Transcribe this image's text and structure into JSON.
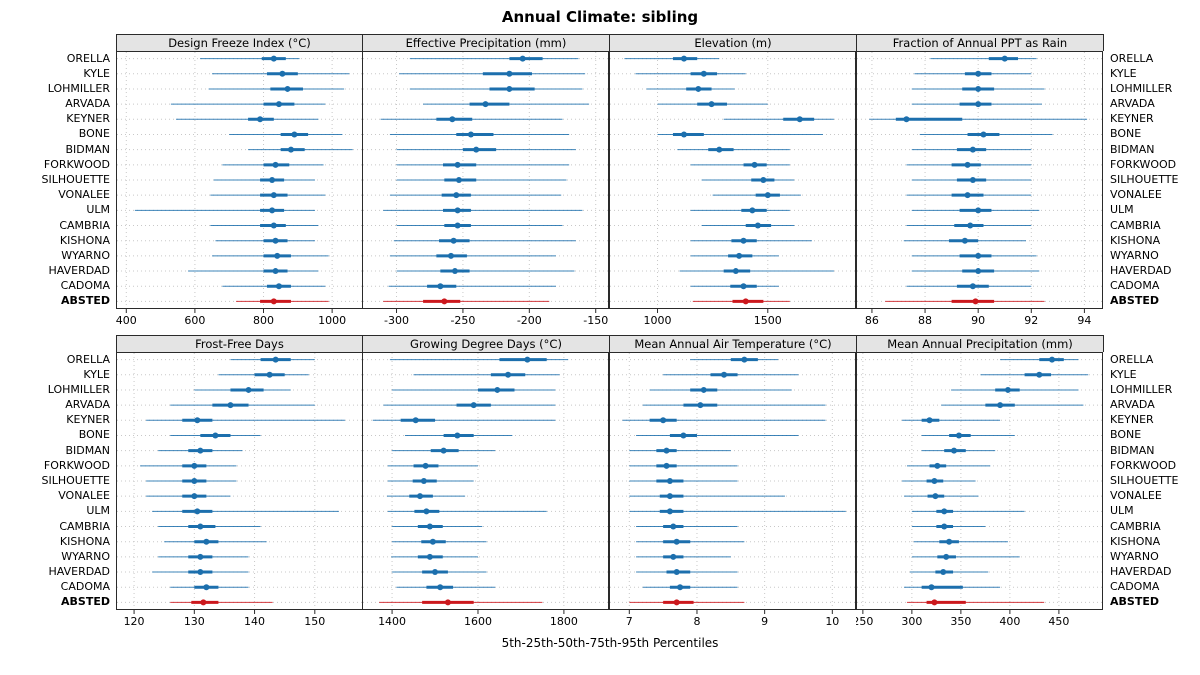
{
  "chart_data": {
    "type": "scatter",
    "subtype": "percentile-dotplot-trellis",
    "title": "Annual Climate: sibling",
    "caption": "5th-25th-50th-75th-95th Percentiles",
    "legend_position": "none",
    "grid": "dotted",
    "percentiles": [
      5,
      25,
      50,
      75,
      95
    ],
    "sites": [
      "ORELLA",
      "KYLE",
      "LOHMILLER",
      "ARVADA",
      "KEYNER",
      "BONE",
      "BIDMAN",
      "FORKWOOD",
      "SILHOUETTE",
      "VONALEE",
      "ULM",
      "CAMBRIA",
      "KISHONA",
      "WYARNO",
      "HAVERDAD",
      "CADOMA",
      "ABSTED"
    ],
    "highlight_site": "ABSTED",
    "colors": {
      "normal": "#1c6fad",
      "highlight": "#cb181d",
      "strip_bg": "#e4e4e4",
      "border": "#2a2a2a",
      "gridline": "#c8c8c8"
    },
    "panels": [
      {
        "title": "Design Freeze Index (°C)",
        "xlim": [
          370,
          1090
        ],
        "ticks": [
          400,
          600,
          800,
          1000
        ],
        "values": [
          [
            615,
            795,
            830,
            865,
            905
          ],
          [
            650,
            810,
            855,
            900,
            1050
          ],
          [
            640,
            820,
            870,
            915,
            1035
          ],
          [
            530,
            800,
            845,
            890,
            980
          ],
          [
            545,
            755,
            790,
            830,
            960
          ],
          [
            700,
            850,
            890,
            930,
            1030
          ],
          [
            755,
            850,
            880,
            920,
            1060
          ],
          [
            680,
            800,
            835,
            875,
            975
          ],
          [
            655,
            790,
            825,
            860,
            950
          ],
          [
            645,
            790,
            830,
            870,
            980
          ],
          [
            425,
            790,
            825,
            860,
            950
          ],
          [
            645,
            790,
            830,
            865,
            960
          ],
          [
            660,
            800,
            835,
            870,
            950
          ],
          [
            650,
            800,
            840,
            880,
            990
          ],
          [
            580,
            800,
            835,
            870,
            960
          ],
          [
            680,
            810,
            845,
            880,
            980
          ],
          [
            720,
            790,
            830,
            880,
            990
          ]
        ]
      },
      {
        "title": "Effective Precipitation (mm)",
        "xlim": [
          -326,
          -140
        ],
        "ticks": [
          -300,
          -250,
          -200,
          -150
        ],
        "values": [
          [
            -290,
            -215,
            -205,
            -190,
            -163
          ],
          [
            -298,
            -235,
            -215,
            -198,
            -158
          ],
          [
            -290,
            -230,
            -215,
            -196,
            -160
          ],
          [
            -280,
            -245,
            -233,
            -215,
            -155
          ],
          [
            -312,
            -270,
            -258,
            -243,
            -175
          ],
          [
            -305,
            -255,
            -244,
            -227,
            -170
          ],
          [
            -300,
            -250,
            -240,
            -225,
            -165
          ],
          [
            -300,
            -265,
            -254,
            -240,
            -170
          ],
          [
            -300,
            -264,
            -253,
            -240,
            -172
          ],
          [
            -305,
            -266,
            -255,
            -244,
            -176
          ],
          [
            -310,
            -265,
            -254,
            -244,
            -160
          ],
          [
            -300,
            -264,
            -254,
            -244,
            -175
          ],
          [
            -302,
            -268,
            -257,
            -245,
            -165
          ],
          [
            -305,
            -270,
            -259,
            -247,
            -180
          ],
          [
            -300,
            -267,
            -256,
            -245,
            -166
          ],
          [
            -306,
            -277,
            -267,
            -255,
            -180
          ],
          [
            -310,
            -280,
            -264,
            -252,
            -185
          ]
        ]
      },
      {
        "title": "Elevation (m)",
        "xlim": [
          780,
          1900
        ],
        "ticks": [
          1000,
          1500
        ],
        "values": [
          [
            850,
            1070,
            1120,
            1180,
            1280
          ],
          [
            900,
            1150,
            1210,
            1270,
            1400
          ],
          [
            950,
            1130,
            1185,
            1245,
            1350
          ],
          [
            1000,
            1180,
            1245,
            1315,
            1500
          ],
          [
            1300,
            1570,
            1645,
            1710,
            1800
          ],
          [
            1000,
            1070,
            1120,
            1210,
            1750
          ],
          [
            1090,
            1230,
            1280,
            1345,
            1600
          ],
          [
            1150,
            1390,
            1440,
            1495,
            1600
          ],
          [
            1200,
            1425,
            1480,
            1530,
            1620
          ],
          [
            1250,
            1445,
            1500,
            1555,
            1650
          ],
          [
            1150,
            1380,
            1430,
            1495,
            1600
          ],
          [
            1200,
            1400,
            1455,
            1515,
            1620
          ],
          [
            1150,
            1335,
            1390,
            1450,
            1700
          ],
          [
            1150,
            1320,
            1370,
            1430,
            1550
          ],
          [
            1100,
            1300,
            1355,
            1420,
            1800
          ],
          [
            1150,
            1330,
            1390,
            1450,
            1550
          ],
          [
            1160,
            1340,
            1400,
            1480,
            1600
          ]
        ]
      },
      {
        "title": "Fraction of Annual PPT as Rain",
        "xlim": [
          85.4,
          94.7
        ],
        "ticks": [
          86,
          88,
          90,
          92,
          94
        ],
        "values": [
          [
            88.2,
            90.4,
            91.0,
            91.5,
            92.2
          ],
          [
            87.6,
            89.5,
            90.0,
            90.5,
            92.0
          ],
          [
            87.5,
            89.4,
            90.0,
            90.6,
            92.5
          ],
          [
            87.5,
            89.3,
            90.0,
            90.5,
            92.4
          ],
          [
            85.9,
            86.9,
            87.3,
            89.4,
            94.1
          ],
          [
            87.8,
            89.6,
            90.2,
            90.8,
            92.8
          ],
          [
            87.5,
            89.2,
            89.8,
            90.3,
            92.0
          ],
          [
            87.3,
            89.0,
            89.6,
            90.1,
            92.0
          ],
          [
            87.5,
            89.2,
            89.8,
            90.3,
            92.0
          ],
          [
            87.3,
            89.0,
            89.6,
            90.2,
            92.0
          ],
          [
            87.5,
            89.3,
            90.0,
            90.5,
            92.3
          ],
          [
            87.3,
            89.1,
            89.7,
            90.2,
            92.0
          ],
          [
            87.2,
            88.9,
            89.5,
            90.0,
            91.8
          ],
          [
            87.5,
            89.3,
            90.0,
            90.5,
            92.2
          ],
          [
            87.5,
            89.4,
            90.0,
            90.6,
            92.3
          ],
          [
            87.3,
            89.2,
            89.8,
            90.4,
            92.0
          ],
          [
            86.5,
            89.0,
            89.9,
            90.6,
            92.5
          ]
        ]
      },
      {
        "title": "Frost-Free Days",
        "xlim": [
          117,
          158
        ],
        "ticks": [
          120,
          130,
          140,
          150
        ],
        "values": [
          [
            136,
            141,
            143.5,
            146,
            150
          ],
          [
            134,
            140,
            142.5,
            145,
            149
          ],
          [
            130,
            136,
            139,
            141.5,
            146
          ],
          [
            126,
            133,
            136,
            139,
            150
          ],
          [
            122,
            128,
            130.5,
            133,
            155
          ],
          [
            126,
            131,
            133.5,
            136,
            141
          ],
          [
            124,
            129,
            131,
            133,
            138
          ],
          [
            121,
            128,
            130,
            132,
            137
          ],
          [
            122,
            128,
            130,
            132,
            137
          ],
          [
            122,
            128,
            130,
            132,
            136
          ],
          [
            123,
            128,
            130.5,
            133,
            154
          ],
          [
            124,
            129,
            131,
            133.5,
            141
          ],
          [
            125,
            130,
            132,
            134,
            142
          ],
          [
            124,
            129,
            131,
            133,
            139
          ],
          [
            123,
            129,
            131,
            133,
            139
          ],
          [
            126,
            130,
            132,
            134,
            139
          ],
          [
            126,
            129.5,
            131.5,
            134,
            143
          ]
        ]
      },
      {
        "title": "Growing Degree Days (°C)",
        "xlim": [
          1330,
          1905
        ],
        "ticks": [
          1400,
          1600,
          1800
        ],
        "values": [
          [
            1395,
            1650,
            1715,
            1760,
            1810
          ],
          [
            1450,
            1630,
            1670,
            1710,
            1790
          ],
          [
            1400,
            1600,
            1645,
            1685,
            1780
          ],
          [
            1380,
            1550,
            1590,
            1630,
            1780
          ],
          [
            1355,
            1420,
            1455,
            1500,
            1780
          ],
          [
            1430,
            1520,
            1552,
            1590,
            1680
          ],
          [
            1400,
            1490,
            1520,
            1555,
            1640
          ],
          [
            1390,
            1450,
            1478,
            1508,
            1600
          ],
          [
            1390,
            1448,
            1474,
            1504,
            1590
          ],
          [
            1388,
            1440,
            1465,
            1495,
            1570
          ],
          [
            1390,
            1452,
            1480,
            1510,
            1760
          ],
          [
            1400,
            1460,
            1488,
            1518,
            1610
          ],
          [
            1400,
            1468,
            1495,
            1525,
            1620
          ],
          [
            1398,
            1460,
            1488,
            1518,
            1600
          ],
          [
            1400,
            1470,
            1500,
            1530,
            1620
          ],
          [
            1410,
            1480,
            1512,
            1542,
            1640
          ],
          [
            1370,
            1470,
            1530,
            1590,
            1750
          ]
        ]
      },
      {
        "title": "Mean Annual Air Temperature (°C)",
        "xlim": [
          6.7,
          10.35
        ],
        "ticks": [
          7,
          8,
          9,
          10
        ],
        "values": [
          [
            7.9,
            8.5,
            8.7,
            8.9,
            9.2
          ],
          [
            7.5,
            8.2,
            8.4,
            8.6,
            9.5
          ],
          [
            7.3,
            7.9,
            8.1,
            8.3,
            9.4
          ],
          [
            7.2,
            7.8,
            8.05,
            8.3,
            9.9
          ],
          [
            6.9,
            7.3,
            7.5,
            7.7,
            9.9
          ],
          [
            7.1,
            7.6,
            7.8,
            8.0,
            9.5
          ],
          [
            7.0,
            7.4,
            7.55,
            7.7,
            8.5
          ],
          [
            7.0,
            7.4,
            7.55,
            7.7,
            8.6
          ],
          [
            7.0,
            7.4,
            7.6,
            7.8,
            8.6
          ],
          [
            7.0,
            7.45,
            7.6,
            7.8,
            9.3
          ],
          [
            7.0,
            7.45,
            7.6,
            7.8,
            10.2
          ],
          [
            7.1,
            7.5,
            7.65,
            7.8,
            8.6
          ],
          [
            7.1,
            7.5,
            7.7,
            7.9,
            8.7
          ],
          [
            7.1,
            7.5,
            7.65,
            7.8,
            8.5
          ],
          [
            7.1,
            7.55,
            7.7,
            7.9,
            8.6
          ],
          [
            7.2,
            7.6,
            7.75,
            7.9,
            8.6
          ],
          [
            7.0,
            7.5,
            7.7,
            7.95,
            8.7
          ]
        ]
      },
      {
        "title": "Mean Annual Precipitation (mm)",
        "xlim": [
          243,
          495
        ],
        "ticks": [
          250,
          300,
          350,
          400,
          450
        ],
        "values": [
          [
            390,
            430,
            443,
            455,
            470
          ],
          [
            370,
            415,
            430,
            442,
            480
          ],
          [
            340,
            385,
            398,
            410,
            470
          ],
          [
            330,
            375,
            390,
            405,
            475
          ],
          [
            290,
            310,
            318,
            328,
            390
          ],
          [
            310,
            338,
            348,
            360,
            405
          ],
          [
            310,
            333,
            343,
            355,
            385
          ],
          [
            295,
            318,
            326,
            335,
            380
          ],
          [
            290,
            315,
            323,
            332,
            365
          ],
          [
            292,
            316,
            324,
            333,
            368
          ],
          [
            300,
            325,
            333,
            342,
            415
          ],
          [
            300,
            325,
            333,
            342,
            375
          ],
          [
            302,
            328,
            338,
            348,
            398
          ],
          [
            300,
            326,
            335,
            345,
            410
          ],
          [
            298,
            324,
            332,
            342,
            378
          ],
          [
            292,
            310,
            320,
            352,
            390
          ],
          [
            295,
            315,
            323,
            355,
            435
          ]
        ]
      }
    ]
  }
}
